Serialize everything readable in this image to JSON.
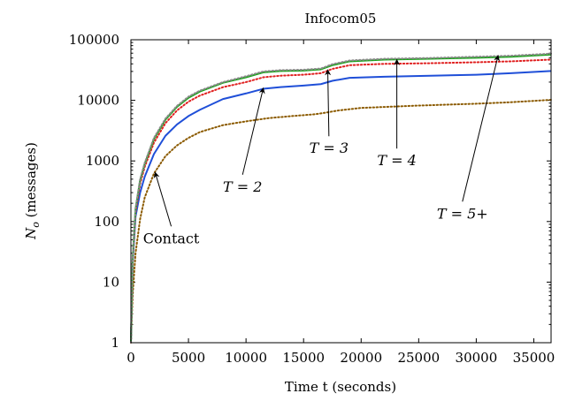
{
  "chart_data": {
    "type": "line",
    "title": "Infocom05",
    "xlabel": "Time t (seconds)",
    "ylabel_main": "N",
    "ylabel_sub": "o",
    "ylabel_rest": " (messages)",
    "xscale": "linear",
    "yscale": "log",
    "xlim": [
      0,
      36500
    ],
    "ylim": [
      1,
      100000
    ],
    "x_ticks": [
      0,
      5000,
      10000,
      15000,
      20000,
      25000,
      30000,
      35000
    ],
    "x_tick_labels": [
      "0",
      "5000",
      "10000",
      "15000",
      "20000",
      "25000",
      "30000",
      "35000"
    ],
    "y_ticks": [
      1,
      10,
      100,
      1000,
      10000,
      100000
    ],
    "y_tick_labels": [
      "1",
      "10",
      "100",
      "1000",
      "10000",
      "100000"
    ],
    "grid": false,
    "series": [
      {
        "color": "#8b5a00",
        "style": "dotted",
        "x": [
          0,
          150,
          400,
          800,
          1200,
          2000,
          3000,
          4000,
          5000,
          6000,
          8000,
          10000,
          12000,
          14000,
          16000,
          17000,
          18000,
          20000,
          25000,
          30000,
          33000,
          36500
        ],
        "y": [
          1,
          6,
          30,
          110,
          250,
          620,
          1200,
          1800,
          2400,
          3000,
          3900,
          4500,
          5100,
          5500,
          5900,
          6300,
          6800,
          7500,
          8200,
          8800,
          9300,
          10200
        ]
      },
      {
        "color": "#1f4fd8",
        "style": "solid",
        "x": [
          0,
          150,
          400,
          800,
          1200,
          2000,
          3000,
          4000,
          5000,
          6000,
          8000,
          10000,
          11500,
          13000,
          15000,
          16500,
          17500,
          19000,
          22000,
          26000,
          30000,
          33000,
          36500
        ],
        "y": [
          1,
          20,
          120,
          300,
          550,
          1300,
          2600,
          4000,
          5500,
          7000,
          10500,
          13000,
          15500,
          16500,
          17500,
          18500,
          21000,
          23500,
          24500,
          25500,
          26500,
          28000,
          30500
        ]
      },
      {
        "color": "#e02020",
        "style": "dotted",
        "x": [
          0,
          150,
          400,
          800,
          1200,
          2000,
          3000,
          4000,
          5000,
          6000,
          8000,
          10000,
          11500,
          13000,
          15000,
          16500,
          17500,
          19000,
          22000,
          26000,
          30000,
          33000,
          36500
        ],
        "y": [
          1,
          22,
          140,
          420,
          800,
          2000,
          4200,
          6800,
          9500,
          12000,
          16500,
          20000,
          24000,
          25500,
          26500,
          28000,
          33000,
          38000,
          40000,
          41000,
          42500,
          44000,
          47000
        ]
      },
      {
        "color": "#1aa31a",
        "style": "solid",
        "x": [
          0,
          150,
          400,
          800,
          1200,
          2000,
          3000,
          4000,
          5000,
          6000,
          8000,
          10000,
          11500,
          13000,
          15000,
          16500,
          17500,
          19000,
          22000,
          26000,
          30000,
          33000,
          36500
        ],
        "y": [
          1,
          24,
          160,
          480,
          900,
          2300,
          4800,
          7800,
          11000,
          14000,
          19500,
          24000,
          29000,
          30500,
          31000,
          32500,
          38000,
          44000,
          47000,
          48500,
          50500,
          52500,
          57000
        ]
      },
      {
        "color": "#8a8a8a",
        "style": "dotted",
        "x": [
          0,
          150,
          400,
          800,
          1200,
          2000,
          3000,
          4000,
          5000,
          6000,
          8000,
          10000,
          11500,
          13000,
          15000,
          16500,
          17500,
          19000,
          22000,
          26000,
          30000,
          33000,
          36500
        ],
        "y": [
          1,
          25,
          165,
          500,
          930,
          2400,
          5000,
          8100,
          11500,
          14500,
          20000,
          25000,
          30000,
          31500,
          32000,
          33500,
          39500,
          45500,
          48500,
          50000,
          52500,
          54500,
          59000
        ]
      }
    ],
    "annotations": [
      {
        "label": "Contact",
        "italic": false,
        "text_x": 3500,
        "text_y": 52,
        "arrow_x": 2100,
        "arrow_y": 650
      },
      {
        "label": "T = 2",
        "italic": true,
        "text_x": 9700,
        "text_y": 370,
        "arrow_x": 11500,
        "arrow_y": 16000
      },
      {
        "label": "T = 3",
        "italic": true,
        "text_x": 17200,
        "text_y": 1600,
        "arrow_x": 17100,
        "arrow_y": 32000
      },
      {
        "label": "T = 4",
        "italic": true,
        "text_x": 23100,
        "text_y": 1000,
        "arrow_x": 23100,
        "arrow_y": 47000
      },
      {
        "label": "T = 5+",
        "italic": true,
        "text_x": 28800,
        "text_y": 133,
        "arrow_x": 31900,
        "arrow_y": 55000
      }
    ]
  }
}
